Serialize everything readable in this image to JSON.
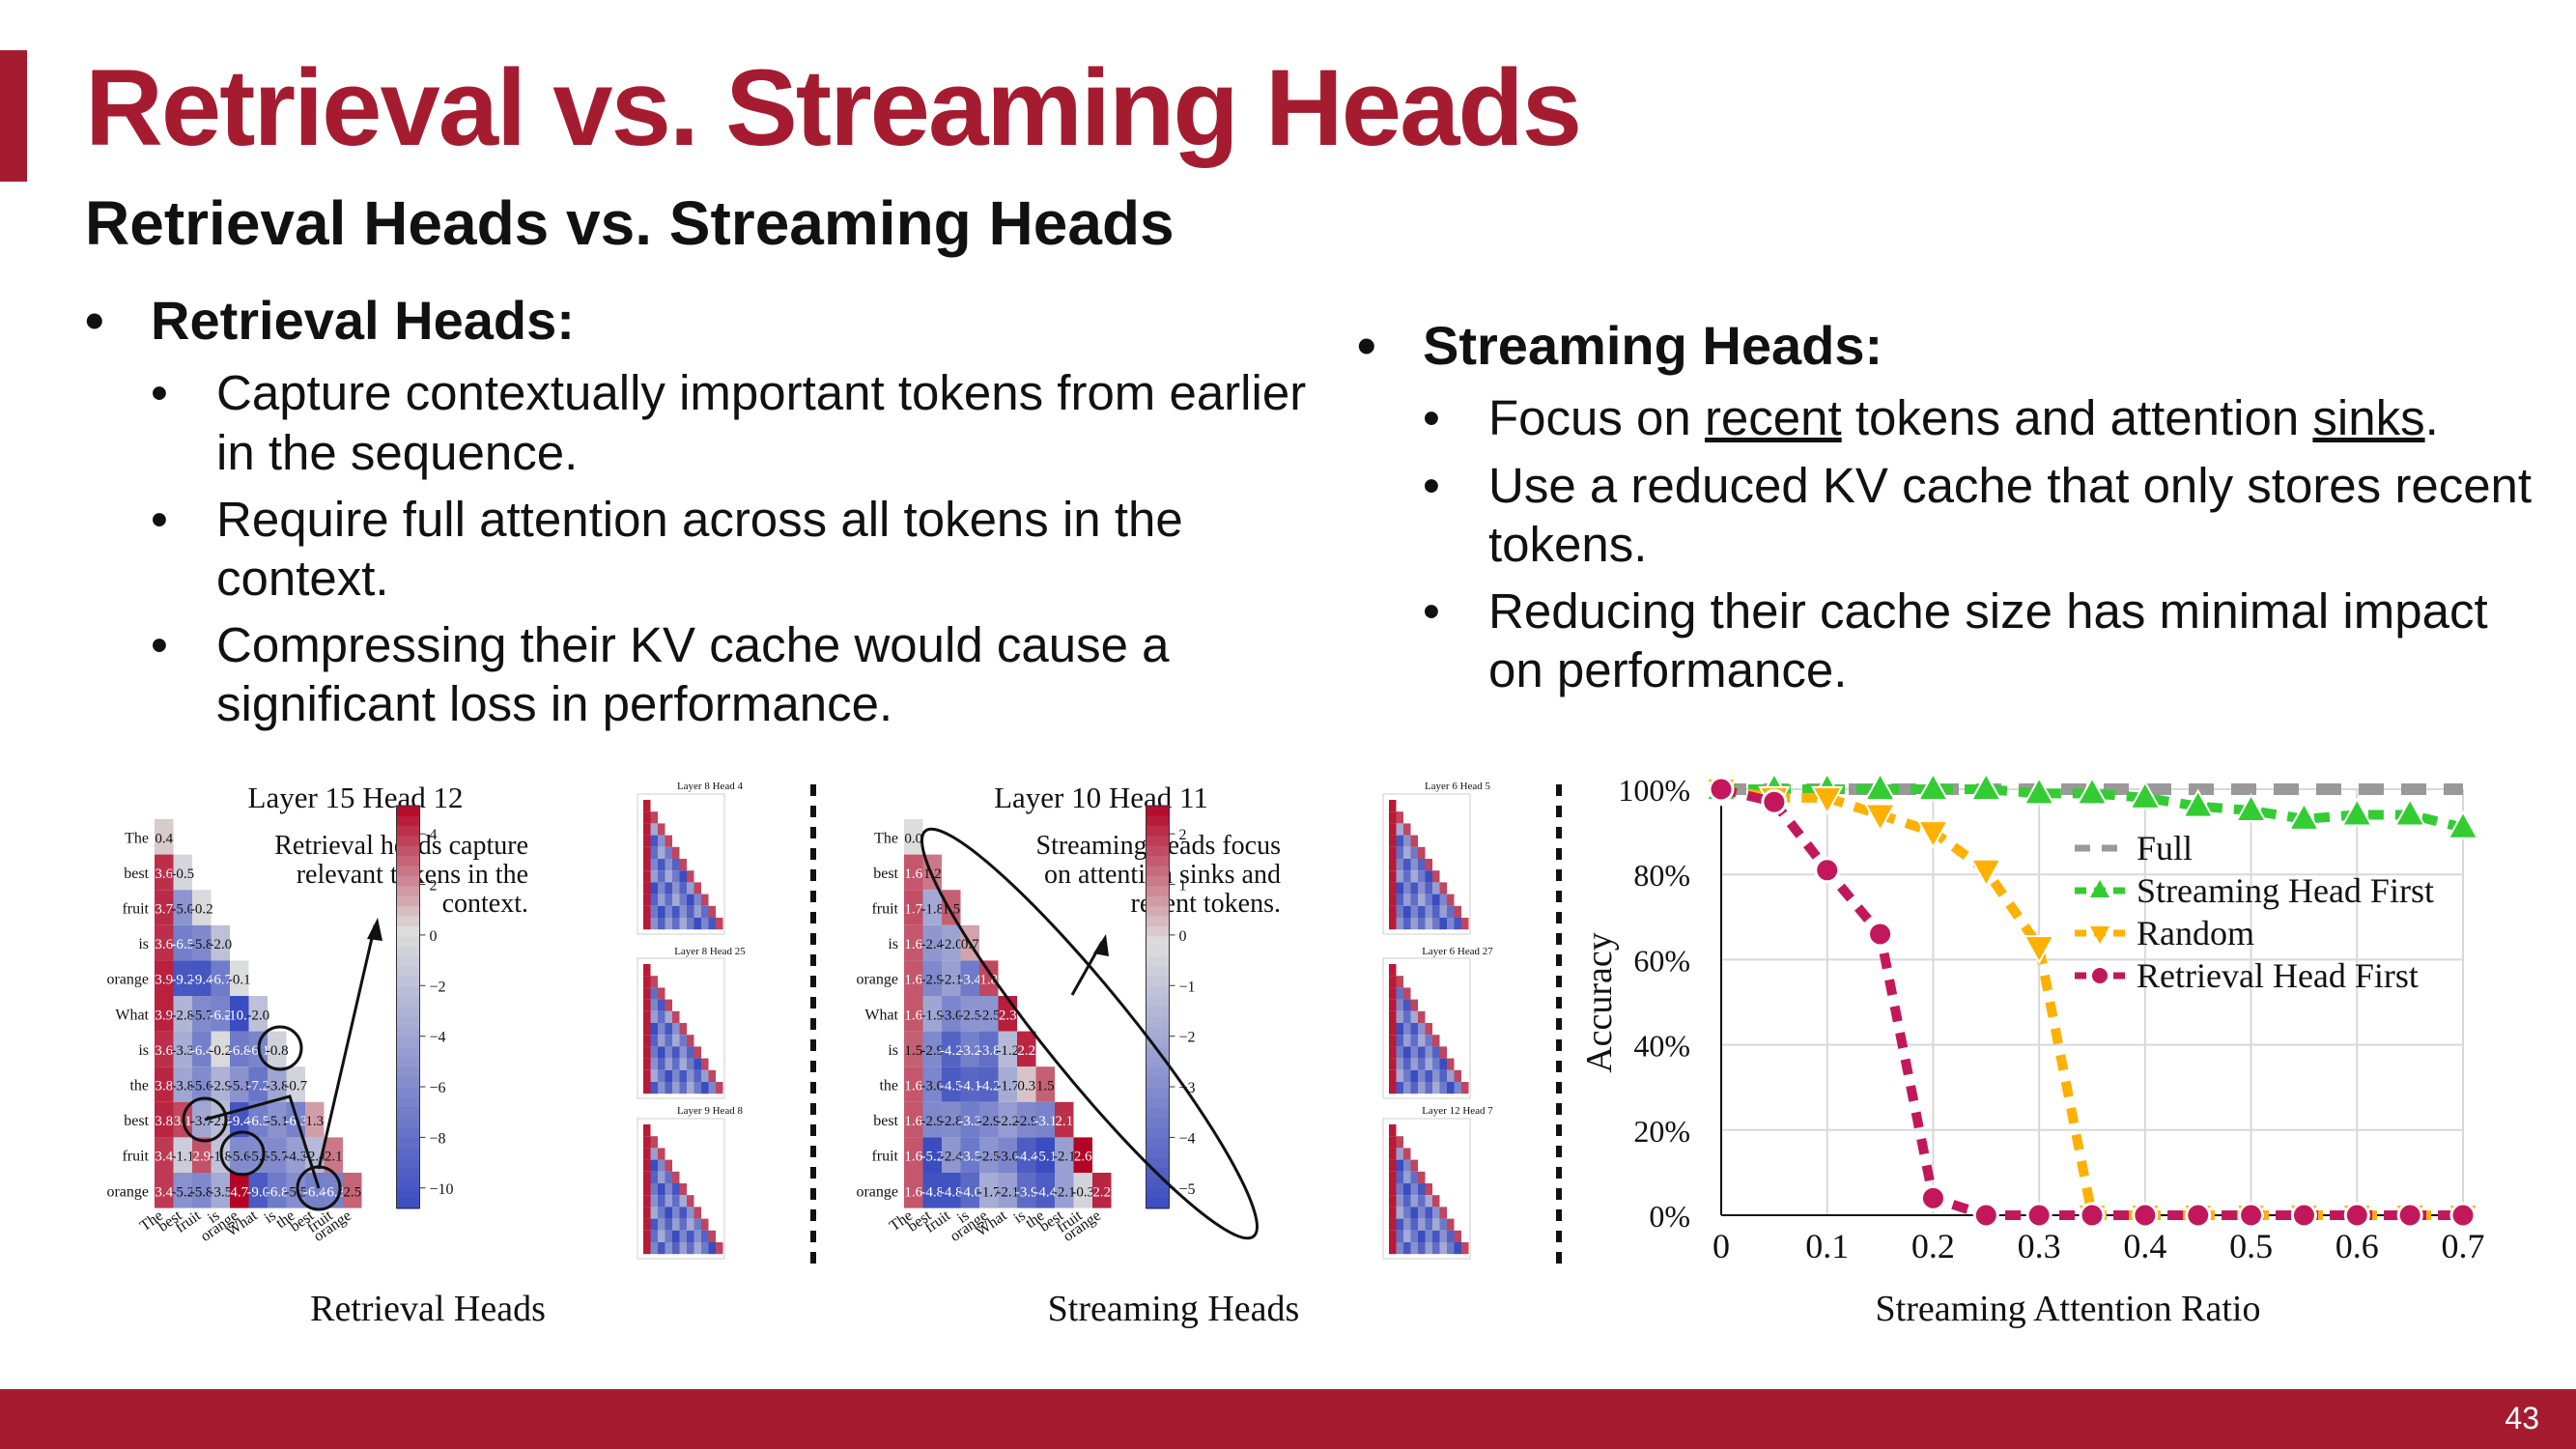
{
  "slide": {
    "title": "Retrieval vs. Streaming Heads",
    "subtitle": "Retrieval Heads vs. Streaming Heads",
    "page_number": "43",
    "accent_color": "#a51c30"
  },
  "left": {
    "heading": "Retrieval Heads:",
    "bullets": [
      "Capture contextually important tokens from earlier in the sequence.",
      "Require full attention across all tokens in the context.",
      "Compressing their KV cache would cause a significant loss in performance."
    ]
  },
  "right": {
    "heading": "Streaming Heads:",
    "b1_pre": "Focus on ",
    "b1_u1": "recent",
    "b1_mid": " tokens and attention ",
    "b1_u2": "sinks",
    "b1_post": ".",
    "b2": "Use a reduced KV cache that only stores recent tokens.",
    "b3": "Reducing their cache size has minimal impact on performance."
  },
  "fig1": {
    "title": "Layer 15 Head 12",
    "annotation": [
      "Retrieval heads capture",
      "relevant tokens in the",
      "context."
    ],
    "caption": "Retrieval Heads",
    "thumbs": [
      "Layer 8 Head 4",
      "Layer 8 Head 25",
      "Layer 9 Head 8"
    ],
    "colorbar_ticks": [
      "4",
      "2",
      "0",
      "−2",
      "−4",
      "−6",
      "−8",
      "−10"
    ]
  },
  "fig2": {
    "title": "Layer 10 Head 11",
    "annotation": [
      "Streaming heads focus",
      "on attention sinks and",
      "recent tokens."
    ],
    "caption": "Streaming Heads",
    "thumbs": [
      "Layer 6 Head 5",
      "Layer 6 Head 27",
      "Layer 12 Head 7"
    ],
    "colorbar_ticks": [
      "2",
      "1",
      "0",
      "−1",
      "−2",
      "−3",
      "−4",
      "−5"
    ]
  },
  "tokens": [
    "The",
    "best",
    "fruit",
    "is",
    "orange",
    "What",
    "is",
    "the",
    "best",
    "fruit",
    "orange"
  ],
  "matrix1": [
    [
      0.4
    ],
    [
      3.6,
      -0.5
    ],
    [
      3.7,
      -5.0,
      -0.2
    ],
    [
      3.6,
      -6.5,
      -5.8,
      -2.0
    ],
    [
      3.9,
      -9.2,
      -9.4,
      -6.7,
      -0.1
    ],
    [
      3.9,
      -2.8,
      -5.7,
      -6.2,
      -10.1,
      -2.0
    ],
    [
      3.6,
      -3.3,
      -6.4,
      -0.2,
      -6.8,
      -6.1,
      -0.8
    ],
    [
      3.8,
      -3.8,
      -5.6,
      -2.9,
      -5.1,
      -7.2,
      -3.8,
      -0.7
    ],
    [
      3.8,
      3.1,
      -3.7,
      -2.3,
      -9.4,
      -6.5,
      -5.1,
      -6.3,
      1.3
    ],
    [
      3.4,
      -1.1,
      2.9,
      -1.8,
      -5.6,
      -5.6,
      -5.7,
      -4.3,
      -2.4,
      2.1
    ],
    [
      3.4,
      -5.2,
      -5.8,
      -3.5,
      4.7,
      -9.0,
      -6.8,
      -5.5,
      -6.4,
      -6.3,
      2.5
    ]
  ],
  "matrix2": [
    [
      0.0
    ],
    [
      1.6,
      1.2
    ],
    [
      1.7,
      -1.8,
      1.5
    ],
    [
      1.6,
      -2.4,
      -2.0,
      0.7
    ],
    [
      1.6,
      -2.9,
      -2.1,
      -3.4,
      1.8
    ],
    [
      1.6,
      -1.9,
      -3.0,
      -2.5,
      -2.5,
      2.3
    ],
    [
      1.5,
      -2.9,
      -4.2,
      -3.2,
      -3.8,
      -1.2,
      2.2
    ],
    [
      1.6,
      -3.0,
      -4.5,
      -4.1,
      -4.2,
      -1.7,
      0.3,
      1.5
    ],
    [
      1.6,
      -2.9,
      -2.8,
      -3.3,
      -2.9,
      -2.2,
      -2.9,
      -3.1,
      2.1
    ],
    [
      1.6,
      -5.2,
      -2.4,
      -3.5,
      -2.5,
      -3.0,
      -4.4,
      -5.1,
      -2.1,
      2.6
    ],
    [
      1.6,
      -4.8,
      -4.8,
      -4.0,
      -1.7,
      -2.1,
      -3.9,
      -4.4,
      -2.1,
      -0.3,
      2.2
    ]
  ],
  "chart_data": {
    "type": "line",
    "xlabel": "Streaming Attention Ratio",
    "ylabel": "Accuracy",
    "xlim": [
      0,
      0.7
    ],
    "ylim": [
      0,
      100
    ],
    "x_ticks": [
      "0",
      "0.1",
      "0.2",
      "0.3",
      "0.4",
      "0.5",
      "0.6",
      "0.7"
    ],
    "y_ticks": [
      "0%",
      "20%",
      "40%",
      "60%",
      "80%",
      "100%"
    ],
    "grid": true,
    "legend_position": "center-right",
    "x": [
      0,
      0.05,
      0.1,
      0.15,
      0.2,
      0.25,
      0.3,
      0.35,
      0.4,
      0.45,
      0.5,
      0.55,
      0.6,
      0.65,
      0.7
    ],
    "series": [
      {
        "name": "Full",
        "color": "#999999",
        "marker": "none",
        "values": [
          100,
          100,
          100,
          100,
          100,
          100,
          100,
          100,
          100,
          100,
          100,
          100,
          100,
          100,
          100
        ]
      },
      {
        "name": "Streaming Head First",
        "color": "#33cc33",
        "marker": "triangle-up",
        "values": [
          100,
          100,
          100,
          100,
          100,
          100,
          99,
          99,
          98,
          96,
          95,
          93,
          94,
          94,
          91
        ]
      },
      {
        "name": "Random",
        "color": "#ffb000",
        "marker": "triangle-down",
        "values": [
          100,
          98,
          98,
          94,
          90,
          81,
          63,
          0,
          0,
          0,
          0,
          0,
          0,
          0,
          0
        ]
      },
      {
        "name": "Retrieval Head First",
        "color": "#c2185b",
        "marker": "circle",
        "values": [
          100,
          97,
          81,
          66,
          4,
          0,
          0,
          0,
          0,
          0,
          0,
          0,
          0,
          0,
          0
        ]
      }
    ]
  }
}
